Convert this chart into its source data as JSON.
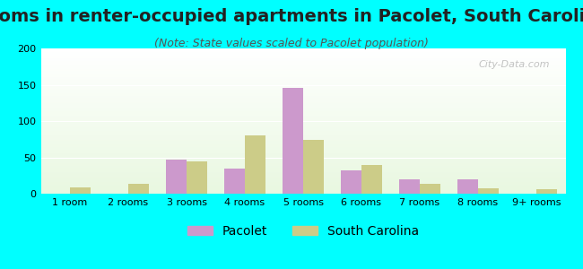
{
  "title": "Rooms in renter-occupied apartments in Pacolet, South Carolina",
  "subtitle": "(Note: State values scaled to Pacolet population)",
  "categories": [
    "1 room",
    "2 rooms",
    "3 rooms",
    "4 rooms",
    "5 rooms",
    "6 rooms",
    "7 rooms",
    "8 rooms",
    "9+ rooms"
  ],
  "pacolet_values": [
    0,
    0,
    47,
    35,
    146,
    32,
    20,
    20,
    0
  ],
  "sc_values": [
    9,
    13,
    45,
    80,
    74,
    39,
    14,
    7,
    6
  ],
  "pacolet_color": "#cc99cc",
  "sc_color": "#cccc88",
  "background_color": "#00ffff",
  "ylim": [
    0,
    200
  ],
  "yticks": [
    0,
    50,
    100,
    150,
    200
  ],
  "bar_width": 0.35,
  "title_fontsize": 14,
  "subtitle_fontsize": 9,
  "tick_fontsize": 8,
  "legend_fontsize": 10,
  "watermark": "City-Data.com"
}
